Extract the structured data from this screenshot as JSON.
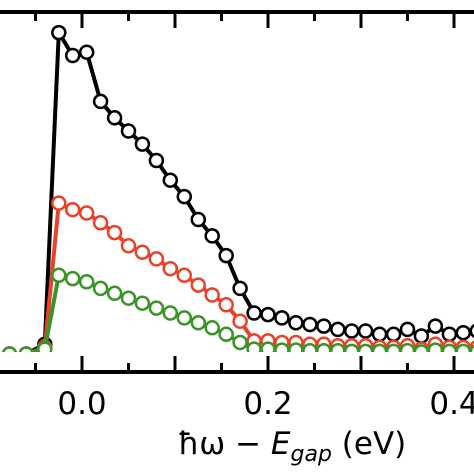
{
  "chart_data": {
    "type": "line",
    "xlabel": "ħω − E_gap (eV)",
    "xlabel_parts": {
      "prefix": "ħω − ",
      "var": "E",
      "sub": "gap",
      "suffix": " (eV)"
    },
    "xlim": [
      -0.08,
      0.43
    ],
    "ylim": [
      0,
      1.0
    ],
    "x_ticks": [
      0.0,
      0.2,
      0.4
    ],
    "x_tick_labels": [
      "0.0",
      "0.2",
      "0.4"
    ],
    "grid": false,
    "series": [
      {
        "color": "#000000",
        "points": [
          [
            -0.078,
            0.0
          ],
          [
            -0.06,
            0.0
          ],
          [
            -0.04,
            0.03
          ],
          [
            -0.025,
            0.98
          ],
          [
            -0.01,
            0.91
          ],
          [
            0.005,
            0.92
          ],
          [
            0.02,
            0.77
          ],
          [
            0.035,
            0.72
          ],
          [
            0.05,
            0.68
          ],
          [
            0.065,
            0.64
          ],
          [
            0.08,
            0.59
          ],
          [
            0.095,
            0.53
          ],
          [
            0.11,
            0.48
          ],
          [
            0.125,
            0.41
          ],
          [
            0.14,
            0.36
          ],
          [
            0.155,
            0.3
          ],
          [
            0.17,
            0.2
          ],
          [
            0.185,
            0.125
          ],
          [
            0.2,
            0.12
          ],
          [
            0.215,
            0.11
          ],
          [
            0.23,
            0.095
          ],
          [
            0.245,
            0.09
          ],
          [
            0.26,
            0.085
          ],
          [
            0.275,
            0.075
          ],
          [
            0.29,
            0.07
          ],
          [
            0.305,
            0.07
          ],
          [
            0.32,
            0.06
          ],
          [
            0.335,
            0.06
          ],
          [
            0.35,
            0.075
          ],
          [
            0.365,
            0.055
          ],
          [
            0.38,
            0.085
          ],
          [
            0.395,
            0.06
          ],
          [
            0.41,
            0.065
          ],
          [
            0.425,
            0.07
          ]
        ]
      },
      {
        "color": "#e8432a",
        "points": [
          [
            -0.078,
            0.0
          ],
          [
            -0.06,
            0.0
          ],
          [
            -0.04,
            0.02
          ],
          [
            -0.025,
            0.46
          ],
          [
            -0.01,
            0.44
          ],
          [
            0.005,
            0.43
          ],
          [
            0.02,
            0.4
          ],
          [
            0.035,
            0.37
          ],
          [
            0.05,
            0.33
          ],
          [
            0.065,
            0.31
          ],
          [
            0.08,
            0.29
          ],
          [
            0.095,
            0.26
          ],
          [
            0.11,
            0.24
          ],
          [
            0.125,
            0.21
          ],
          [
            0.14,
            0.18
          ],
          [
            0.155,
            0.15
          ],
          [
            0.17,
            0.1
          ],
          [
            0.185,
            0.04
          ],
          [
            0.2,
            0.04
          ],
          [
            0.215,
            0.035
          ],
          [
            0.23,
            0.035
          ],
          [
            0.245,
            0.03
          ],
          [
            0.26,
            0.03
          ],
          [
            0.275,
            0.025
          ],
          [
            0.29,
            0.025
          ],
          [
            0.305,
            0.025
          ],
          [
            0.32,
            0.02
          ],
          [
            0.335,
            0.02
          ],
          [
            0.35,
            0.025
          ],
          [
            0.365,
            0.015
          ],
          [
            0.38,
            0.03
          ],
          [
            0.395,
            0.02
          ],
          [
            0.41,
            0.02
          ],
          [
            0.425,
            0.02
          ]
        ]
      },
      {
        "color": "#3a9428",
        "points": [
          [
            -0.078,
            0.0
          ],
          [
            -0.06,
            0.0
          ],
          [
            -0.04,
            0.015
          ],
          [
            -0.025,
            0.24
          ],
          [
            -0.01,
            0.23
          ],
          [
            0.005,
            0.22
          ],
          [
            0.02,
            0.2
          ],
          [
            0.035,
            0.185
          ],
          [
            0.05,
            0.17
          ],
          [
            0.065,
            0.155
          ],
          [
            0.08,
            0.14
          ],
          [
            0.095,
            0.125
          ],
          [
            0.11,
            0.11
          ],
          [
            0.125,
            0.095
          ],
          [
            0.14,
            0.08
          ],
          [
            0.155,
            0.06
          ],
          [
            0.17,
            0.035
          ],
          [
            0.185,
            0.015
          ],
          [
            0.2,
            0.015
          ],
          [
            0.215,
            0.012
          ],
          [
            0.23,
            0.012
          ],
          [
            0.245,
            0.01
          ],
          [
            0.26,
            0.01
          ],
          [
            0.275,
            0.01
          ],
          [
            0.29,
            0.008
          ],
          [
            0.305,
            0.008
          ],
          [
            0.32,
            0.008
          ],
          [
            0.335,
            0.008
          ],
          [
            0.35,
            0.01
          ],
          [
            0.365,
            0.006
          ],
          [
            0.38,
            0.012
          ],
          [
            0.395,
            0.008
          ],
          [
            0.41,
            0.008
          ],
          [
            0.425,
            0.008
          ]
        ]
      }
    ]
  }
}
